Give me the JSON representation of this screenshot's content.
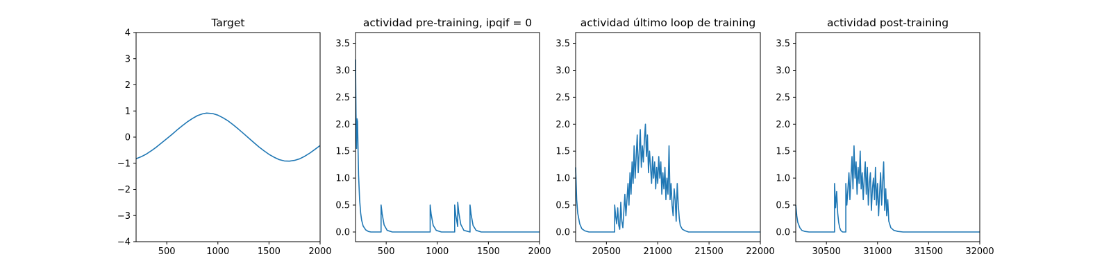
{
  "colors": {
    "series": "#1f77b4",
    "axes": "#000000",
    "background": "#ffffff"
  },
  "chart_data": [
    {
      "type": "line",
      "title": "Target",
      "xlabel": "",
      "ylabel": "",
      "xlim": [
        200,
        2000
      ],
      "ylim": [
        -4,
        4
      ],
      "xticks": [
        500,
        1000,
        1500,
        2000
      ],
      "yticks": [
        -4,
        -3,
        -2,
        -1,
        0,
        1,
        2,
        3,
        4
      ],
      "grid": false,
      "series": [
        {
          "color": "#1f77b4",
          "x": [
            200,
            250,
            300,
            350,
            400,
            450,
            500,
            550,
            600,
            650,
            700,
            750,
            800,
            850,
            890,
            950,
            1000,
            1050,
            1100,
            1150,
            1200,
            1250,
            1300,
            1350,
            1400,
            1450,
            1500,
            1550,
            1600,
            1650,
            1700,
            1750,
            1800,
            1850,
            1900,
            1950,
            2000
          ],
          "y": [
            -0.83,
            -0.75,
            -0.65,
            -0.52,
            -0.38,
            -0.22,
            -0.06,
            0.1,
            0.27,
            0.43,
            0.58,
            0.71,
            0.82,
            0.89,
            0.92,
            0.9,
            0.84,
            0.74,
            0.62,
            0.47,
            0.31,
            0.14,
            -0.03,
            -0.2,
            -0.37,
            -0.52,
            -0.66,
            -0.77,
            -0.86,
            -0.91,
            -0.92,
            -0.89,
            -0.83,
            -0.73,
            -0.61,
            -0.47,
            -0.32
          ]
        }
      ]
    },
    {
      "type": "line",
      "title": "actividad pre-training, ipqif = 0",
      "xlabel": "",
      "ylabel": "",
      "xlim": [
        200,
        2000
      ],
      "ylim": [
        -0.18,
        3.7
      ],
      "xticks": [
        500,
        1000,
        1500,
        2000
      ],
      "yticks": [
        0.0,
        0.5,
        1.0,
        1.5,
        2.0,
        2.5,
        3.0,
        3.5
      ],
      "ytick_labels": [
        "0.0",
        "0.5",
        "1.0",
        "1.5",
        "2.0",
        "2.5",
        "3.0",
        "3.5"
      ],
      "grid": false,
      "series": [
        {
          "color": "#1f77b4",
          "x": [
            200,
            205,
            210,
            215,
            220,
            225,
            230,
            240,
            250,
            260,
            275,
            300,
            325,
            350,
            400,
            450,
            450,
            460,
            480,
            510,
            560,
            930,
            930,
            940,
            960,
            990,
            1040,
            1170,
            1170,
            1180,
            1200,
            1200,
            1210,
            1230,
            1260,
            1320,
            1320,
            1330,
            1350,
            1380,
            1430,
            2000
          ],
          "y": [
            3.2,
            2.2,
            1.55,
            2.1,
            2.05,
            1.5,
            1.05,
            0.6,
            0.35,
            0.22,
            0.11,
            0.04,
            0.01,
            0.0,
            0.0,
            0.0,
            0.5,
            0.34,
            0.13,
            0.03,
            0.0,
            0.0,
            0.5,
            0.33,
            0.12,
            0.03,
            0.0,
            0.0,
            0.5,
            0.32,
            0.1,
            0.55,
            0.36,
            0.14,
            0.03,
            0.0,
            0.5,
            0.33,
            0.12,
            0.03,
            0.0,
            0.0
          ]
        }
      ]
    },
    {
      "type": "line",
      "title": "actividad último loop de training",
      "xlabel": "",
      "ylabel": "",
      "xlim": [
        20200,
        22000
      ],
      "ylim": [
        -0.18,
        3.7
      ],
      "xticks": [
        20500,
        21000,
        21500,
        22000
      ],
      "yticks": [
        0.0,
        0.5,
        1.0,
        1.5,
        2.0,
        2.5,
        3.0,
        3.5
      ],
      "ytick_labels": [
        "0.0",
        "0.5",
        "1.0",
        "1.5",
        "2.0",
        "2.5",
        "3.0",
        "3.5"
      ],
      "grid": false,
      "series": [
        {
          "color": "#1f77b4",
          "x": [
            20200,
            20210,
            20220,
            20240,
            20260,
            20290,
            20330,
            20400,
            20580,
            20580,
            20590,
            20600,
            20610,
            20620,
            20630,
            20640,
            20650,
            20660,
            20670,
            20680,
            20690,
            20700,
            20710,
            20720,
            20730,
            20740,
            20750,
            20760,
            20770,
            20780,
            20790,
            20800,
            20810,
            20820,
            20830,
            20840,
            20850,
            20860,
            20870,
            20880,
            20890,
            20900,
            20910,
            20920,
            20930,
            20940,
            20950,
            20960,
            20970,
            20980,
            20990,
            21000,
            21010,
            21020,
            21030,
            21040,
            21050,
            21060,
            21070,
            21080,
            21090,
            21100,
            21110,
            21120,
            21130,
            21140,
            21150,
            21160,
            21170,
            21180,
            21190,
            21200,
            21210,
            21220,
            21240,
            21270,
            21300,
            21350,
            22000
          ],
          "y": [
            1.2,
            0.6,
            0.35,
            0.15,
            0.06,
            0.02,
            0.0,
            0.0,
            0.0,
            0.5,
            0.3,
            0.15,
            0.45,
            0.12,
            0.05,
            0.55,
            0.2,
            0.08,
            0.4,
            0.7,
            0.3,
            0.6,
            0.9,
            0.5,
            1.1,
            0.7,
            1.3,
            0.9,
            1.6,
            1.0,
            1.4,
            1.8,
            1.1,
            1.5,
            1.9,
            1.2,
            1.6,
            1.3,
            1.7,
            2.0,
            1.4,
            1.8,
            1.1,
            1.5,
            1.2,
            0.9,
            1.4,
            1.0,
            1.3,
            0.8,
            1.2,
            0.9,
            1.4,
            1.0,
            1.3,
            0.7,
            1.1,
            0.8,
            1.2,
            0.6,
            1.0,
            0.7,
            1.6,
            0.6,
            0.9,
            0.5,
            0.3,
            0.8,
            0.6,
            0.2,
            0.9,
            0.5,
            0.25,
            0.12,
            0.05,
            0.02,
            0.0,
            0.0,
            0.0
          ]
        }
      ]
    },
    {
      "type": "line",
      "title": "actividad post-training",
      "xlabel": "",
      "ylabel": "",
      "xlim": [
        30200,
        32000
      ],
      "ylim": [
        -0.18,
        3.7
      ],
      "xticks": [
        30500,
        31000,
        31500,
        32000
      ],
      "yticks": [
        0.0,
        0.5,
        1.0,
        1.5,
        2.0,
        2.5,
        3.0,
        3.5
      ],
      "ytick_labels": [
        "0.0",
        "0.5",
        "1.0",
        "1.5",
        "2.0",
        "2.5",
        "3.0",
        "3.5"
      ],
      "grid": false,
      "series": [
        {
          "color": "#1f77b4",
          "x": [
            30200,
            30210,
            30220,
            30240,
            30260,
            30290,
            30330,
            30400,
            30580,
            30580,
            30590,
            30600,
            30610,
            30620,
            30630,
            30640,
            30650,
            30660,
            30670,
            30680,
            30690,
            30690,
            30700,
            30710,
            30720,
            30730,
            30740,
            30750,
            30760,
            30770,
            30780,
            30790,
            30800,
            30810,
            30820,
            30830,
            30840,
            30850,
            30860,
            30870,
            30880,
            30890,
            30900,
            30910,
            30920,
            30930,
            30940,
            30950,
            30960,
            30970,
            30980,
            30990,
            31000,
            31010,
            31020,
            31030,
            31040,
            31050,
            31060,
            31070,
            31080,
            31090,
            31100,
            31110,
            31130,
            31160,
            31200,
            31250,
            32000
          ],
          "y": [
            0.5,
            0.3,
            0.18,
            0.08,
            0.03,
            0.01,
            0.0,
            0.0,
            0.0,
            0.9,
            0.45,
            0.75,
            0.35,
            0.18,
            0.08,
            0.03,
            0.01,
            0.0,
            0.0,
            0.0,
            0.0,
            0.9,
            0.5,
            0.8,
            1.1,
            0.6,
            1.0,
            1.4,
            0.8,
            1.6,
            1.0,
            1.3,
            0.7,
            1.2,
            0.9,
            1.5,
            0.8,
            1.1,
            0.6,
            1.0,
            1.3,
            0.7,
            1.2,
            0.5,
            0.9,
            1.1,
            0.4,
            0.8,
            1.0,
            0.6,
            1.2,
            0.5,
            0.9,
            0.3,
            0.7,
            1.1,
            0.5,
            0.9,
            1.3,
            0.4,
            0.8,
            0.3,
            0.6,
            0.2,
            0.08,
            0.03,
            0.01,
            0.0,
            0.0
          ]
        }
      ]
    }
  ]
}
